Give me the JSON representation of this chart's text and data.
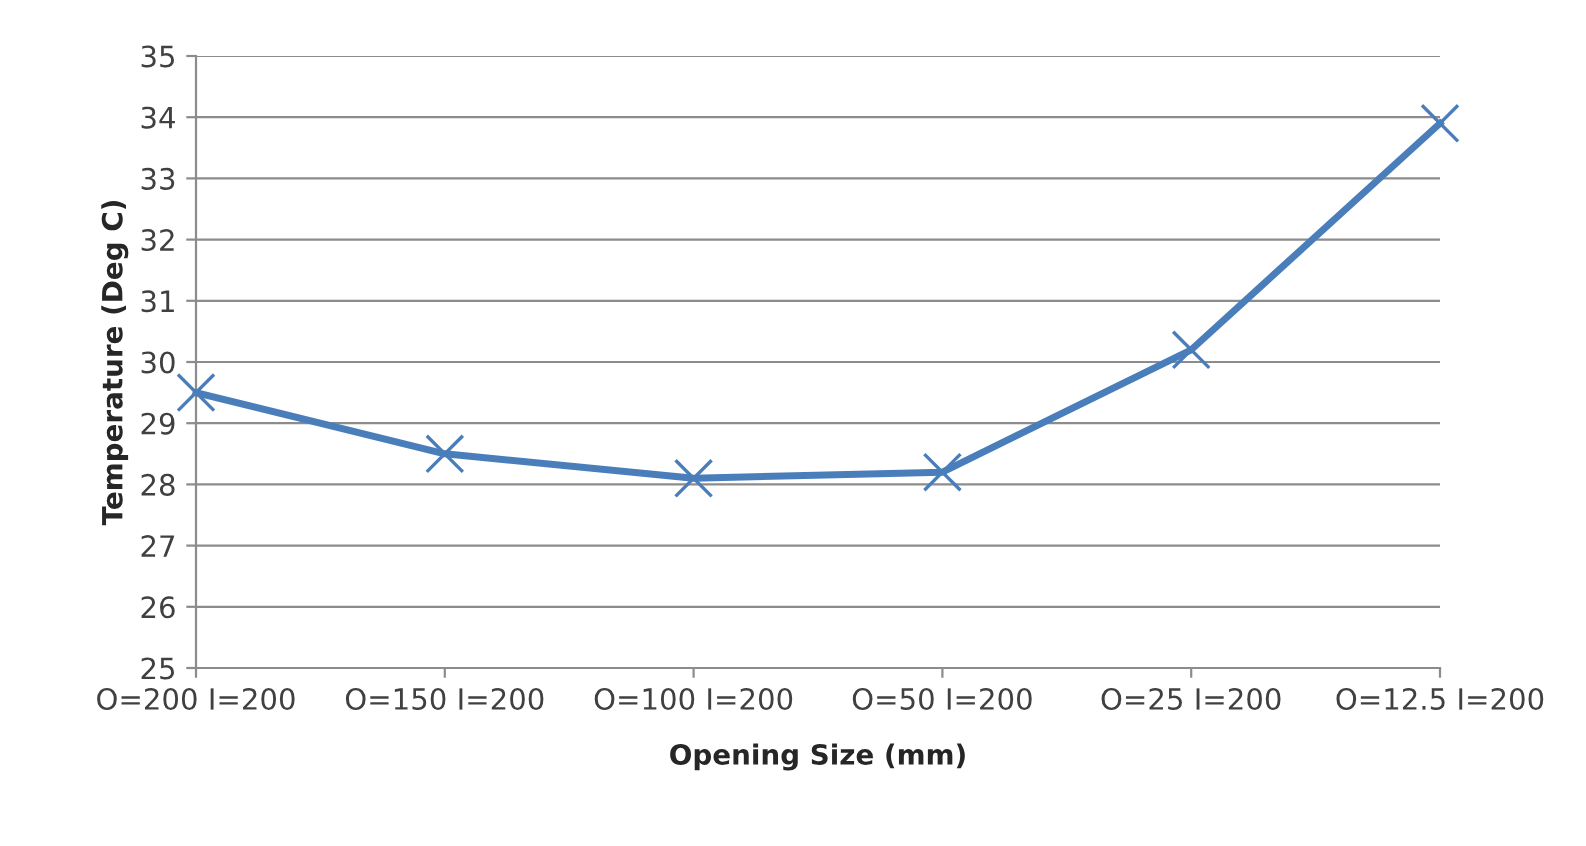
{
  "chart_data": {
    "type": "line",
    "xlabel": "Opening Size (mm)",
    "ylabel": "Temperature (Deg C)",
    "categories": [
      "O=200 I=200",
      "O=150 I=200",
      "O=100 I=200",
      "O=50 I=200",
      "O=25 I=200",
      "O=12.5 I=200"
    ],
    "series": [
      {
        "color": "#4a7ebb",
        "values": [
          29.5,
          28.5,
          28.1,
          28.2,
          30.2,
          33.9
        ]
      }
    ],
    "ylim": [
      25,
      35
    ],
    "yticks": [
      25,
      26,
      27,
      28,
      29,
      30,
      31,
      32,
      33,
      34,
      35
    ],
    "grid": "y",
    "marker": "cross",
    "line_style": "solid"
  }
}
